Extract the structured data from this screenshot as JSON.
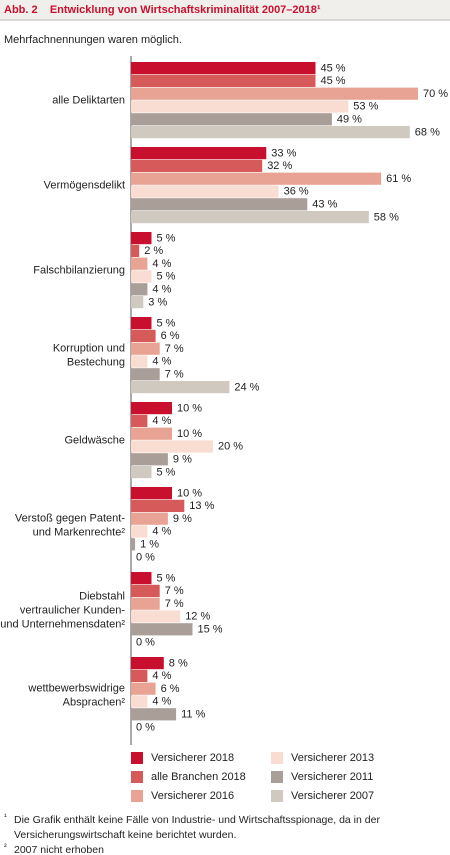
{
  "chart_data": {
    "type": "hbar",
    "title": "Abb. 2    Entwicklung von Wirtschaftskriminalität 2007–2018¹",
    "subtitle": "Mehrfachnennungen waren möglich.",
    "categories": [
      [
        "alle Deliktarten"
      ],
      [
        "Vermögensdelikt"
      ],
      [
        "Falschbilanzierung"
      ],
      [
        "Korruption und",
        "Bestechung"
      ],
      [
        "Geldwäsche"
      ],
      [
        "Verstoß gegen Patent-",
        "und Markenrechte²"
      ],
      [
        "Diebstahl",
        "vertraulicher Kunden-",
        "und Unternehmensdaten²"
      ],
      [
        "wettbewerbswidrige",
        "Absprachen²"
      ]
    ],
    "series": [
      {
        "name": "Versicherer 2018",
        "color": "#c8102e",
        "values": [
          45,
          33,
          5,
          5,
          10,
          10,
          5,
          8
        ],
        "value_labels": [
          "45 %",
          "33 %",
          "5 %",
          "5 %",
          "10 %",
          "10 %",
          "5 %",
          "8 %"
        ]
      },
      {
        "name": "alle Branchen 2018",
        "color": "#d65a5a",
        "values": [
          45,
          32,
          2,
          6,
          4,
          13,
          7,
          4
        ],
        "value_labels": [
          "45 %",
          "32 %",
          "2 %",
          "6 %",
          "4 %",
          "13 %",
          "7 %",
          "4 %"
        ]
      },
      {
        "name": "Versicherer 2016",
        "color": "#e9a394",
        "values": [
          70,
          61,
          4,
          7,
          10,
          9,
          7,
          6
        ],
        "value_labels": [
          "70 %",
          "61 %",
          "4 %",
          "7 %",
          "10 %",
          "9 %",
          "7 %",
          "6 %"
        ]
      },
      {
        "name": "Versicherer 2013",
        "color": "#f9dcd2",
        "values": [
          53,
          36,
          5,
          4,
          20,
          4,
          12,
          4
        ],
        "value_labels": [
          "53 %",
          "36 %",
          "5 %",
          "4 %",
          "20 %",
          "4 %",
          "12 %",
          "4 %"
        ]
      },
      {
        "name": "Versicherer 2011",
        "color": "#aa9e98",
        "values": [
          49,
          43,
          4,
          7,
          9,
          1,
          15,
          11
        ],
        "value_labels": [
          "49 %",
          "43 %",
          "4 %",
          "7 %",
          "9 %",
          "1 %",
          "15 %",
          "11 %"
        ]
      },
      {
        "name": "Versicherer 2007",
        "color": "#cfc9bf",
        "values": [
          68,
          58,
          3,
          24,
          5,
          0,
          0,
          0
        ],
        "value_labels": [
          "68 %",
          "58 %",
          "3 %",
          "24 %",
          "5 %",
          "0 %",
          "0 %",
          "0 %"
        ]
      }
    ],
    "footnotes": [
      {
        "mark": "¹",
        "lines": [
          "Die Grafik enthält keine Fälle von Industrie- und Wirtschaftsspionage, da in der",
          "Versicherungswirtschaft keine berichtet wurden."
        ]
      },
      {
        "mark": "²",
        "lines": [
          "2007 nicht erhoben"
        ]
      }
    ]
  }
}
